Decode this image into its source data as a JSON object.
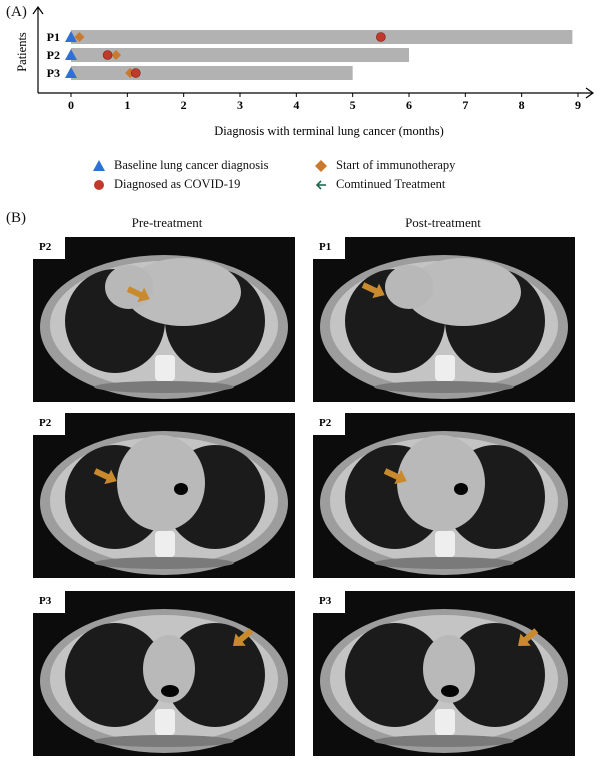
{
  "panel_a_label": "(A)",
  "panel_b_label": "(B)",
  "chart_data": {
    "type": "bar",
    "orientation": "horizontal",
    "categories": [
      "P1",
      "P2",
      "P3"
    ],
    "values": [
      8.9,
      6.0,
      5.0
    ],
    "xlabel": "Diagnosis with terminal lung cancer (months)",
    "ylabel": "Patients",
    "xlim": [
      0,
      9
    ],
    "xticks": [
      0,
      1,
      2,
      3,
      4,
      5,
      6,
      7,
      8,
      9
    ],
    "bar_color": "#b2b2b2",
    "markers": {
      "baseline_diagnosis": {
        "label": "Baseline lung cancer diagnosis",
        "color": "#2f6fd6",
        "points": [
          0,
          0,
          0
        ]
      },
      "immunotherapy_start": {
        "label": "Start of immunotherapy",
        "color": "#c97a2e",
        "points": [
          0.15,
          0.8,
          1.05
        ]
      },
      "covid_diagnosis": {
        "label": "Diagnosed as COVID-19",
        "color": "#c0392b",
        "points": [
          5.5,
          0.65,
          1.15
        ]
      }
    },
    "continued_label": "Comtinued Treatment",
    "continued_color": "#1f6b4f"
  },
  "panel_b": {
    "pre_title": "Pre-treatment",
    "post_title": "Post-treatment",
    "arrow_color": "#c98a2e",
    "scans": [
      {
        "tag": "P2"
      },
      {
        "tag": "P1"
      },
      {
        "tag": "P2"
      },
      {
        "tag": "P2"
      },
      {
        "tag": "P3"
      },
      {
        "tag": "P3"
      }
    ]
  }
}
